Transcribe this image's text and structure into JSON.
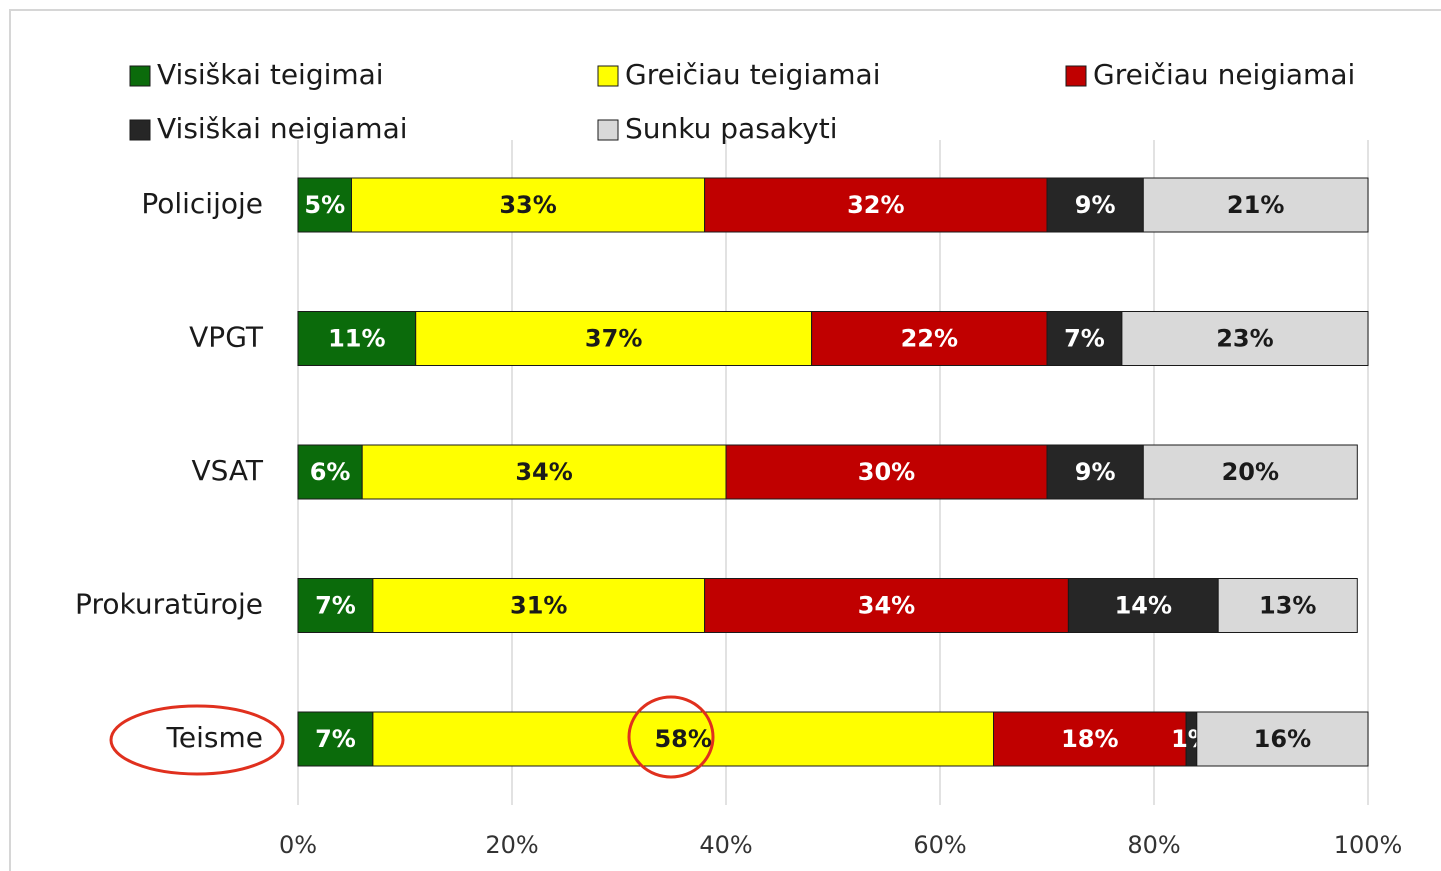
{
  "chart_data": {
    "type": "stacked_bar_horizontal",
    "categories": [
      "Policijoje",
      "VPGT",
      "VSAT",
      "Prokuratūroje",
      "Teisme"
    ],
    "series": [
      {
        "name": "Visiškai teigimai",
        "color": "#0b6b0b",
        "values": [
          5,
          11,
          6,
          7,
          7
        ],
        "value_labels": [
          "5%",
          "11%",
          "6%",
          "7%",
          "7%"
        ]
      },
      {
        "name": "Greičiau teigiamai",
        "color": "#ffff00",
        "values": [
          33,
          37,
          34,
          31,
          58
        ],
        "value_labels": [
          "33%",
          "37%",
          "34%",
          "31%",
          "58%"
        ]
      },
      {
        "name": "Greičiau neigiamai",
        "color": "#c00000",
        "values": [
          32,
          22,
          30,
          34,
          18
        ],
        "value_labels": [
          "32%",
          "22%",
          "30%",
          "34%",
          "18%"
        ]
      },
      {
        "name": "Visiškai neigiamai",
        "color": "#262626",
        "values": [
          9,
          7,
          9,
          14,
          1
        ],
        "value_labels": [
          "9%",
          "7%",
          "9%",
          "14%",
          "1%"
        ]
      },
      {
        "name": "Sunku pasakyti",
        "color": "#d9d9d9",
        "values": [
          21,
          23,
          20,
          13,
          16
        ],
        "value_labels": [
          "21%",
          "23%",
          "20%",
          "13%",
          "16%"
        ]
      }
    ],
    "xlim": [
      0,
      100
    ],
    "xticks": [
      {
        "value": 0,
        "label": "0%"
      },
      {
        "value": 20,
        "label": "20%"
      },
      {
        "value": 40,
        "label": "40%"
      },
      {
        "value": 60,
        "label": "60%"
      },
      {
        "value": 80,
        "label": "80%"
      },
      {
        "value": 100,
        "label": "100%"
      }
    ],
    "grid": true,
    "legend": "top"
  }
}
